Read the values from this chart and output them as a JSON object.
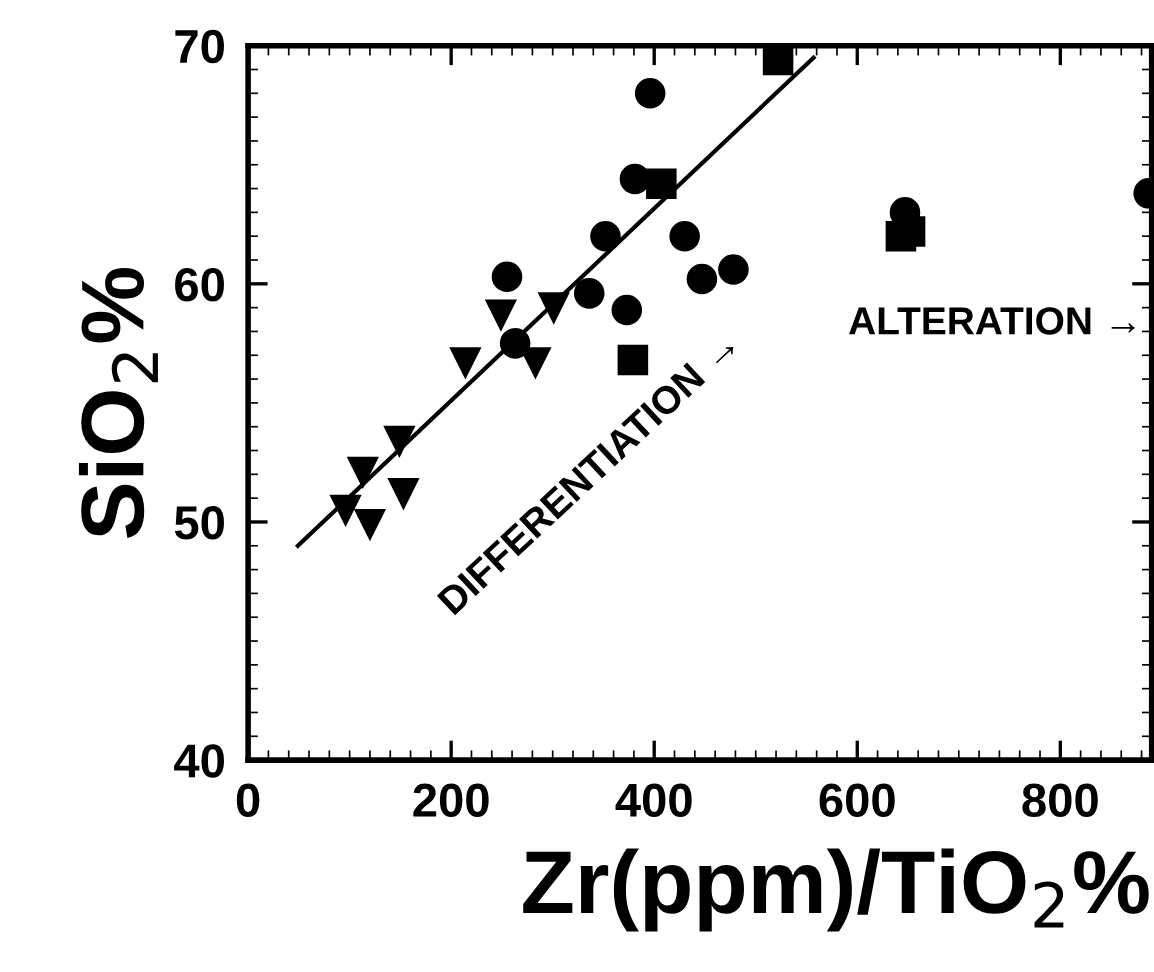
{
  "chart_data": {
    "type": "scatter",
    "xlabel": "Zr(ppm)/TiO$_{2}$%",
    "ylabel": "SiO$_{2}$%",
    "xlim": [
      0,
      890
    ],
    "xticks": [
      0,
      200,
      400,
      600,
      800
    ],
    "ylim": [
      40,
      70
    ],
    "yticks": [
      40,
      50,
      60,
      70
    ],
    "grid": false,
    "legend": false,
    "annotations": [
      "DIFFERENTIATION →",
      "ALTERATION →"
    ],
    "series": [
      {
        "marker": "circle",
        "color": "#000000",
        "x": [
          396,
          381,
          352,
          255,
          336,
          263,
          447,
          647,
          887
        ],
        "values": [
          68.0,
          64.4,
          62.0,
          60.3,
          59.6,
          57.5,
          60.2,
          63.0,
          63.8
        ]
      },
      {
        "marker": "square",
        "color": "#000000",
        "x": [
          522,
          407,
          379,
          643,
          652
        ],
        "values": [
          69.4,
          64.2,
          56.8,
          62.0,
          62.2
        ]
      },
      {
        "marker": "circle",
        "color": "#000000",
        "x": [
          430,
          373,
          478
        ],
        "values": [
          62.0,
          58.9,
          60.6
        ]
      },
      {
        "marker": "triangle",
        "color": "#000000",
        "x": [
          249,
          301,
          214,
          283,
          149,
          113,
          153,
          96,
          120
        ],
        "values": [
          58.7,
          59.0,
          56.7,
          56.7,
          53.4,
          52.1,
          51.2,
          50.5,
          49.9
        ]
      },
      {
        "type": "line",
        "line_style": "solid",
        "marker": "none",
        "color": "#000000",
        "x": [
          49,
          557
        ],
        "values": [
          49.0,
          69.5
        ]
      }
    ]
  }
}
